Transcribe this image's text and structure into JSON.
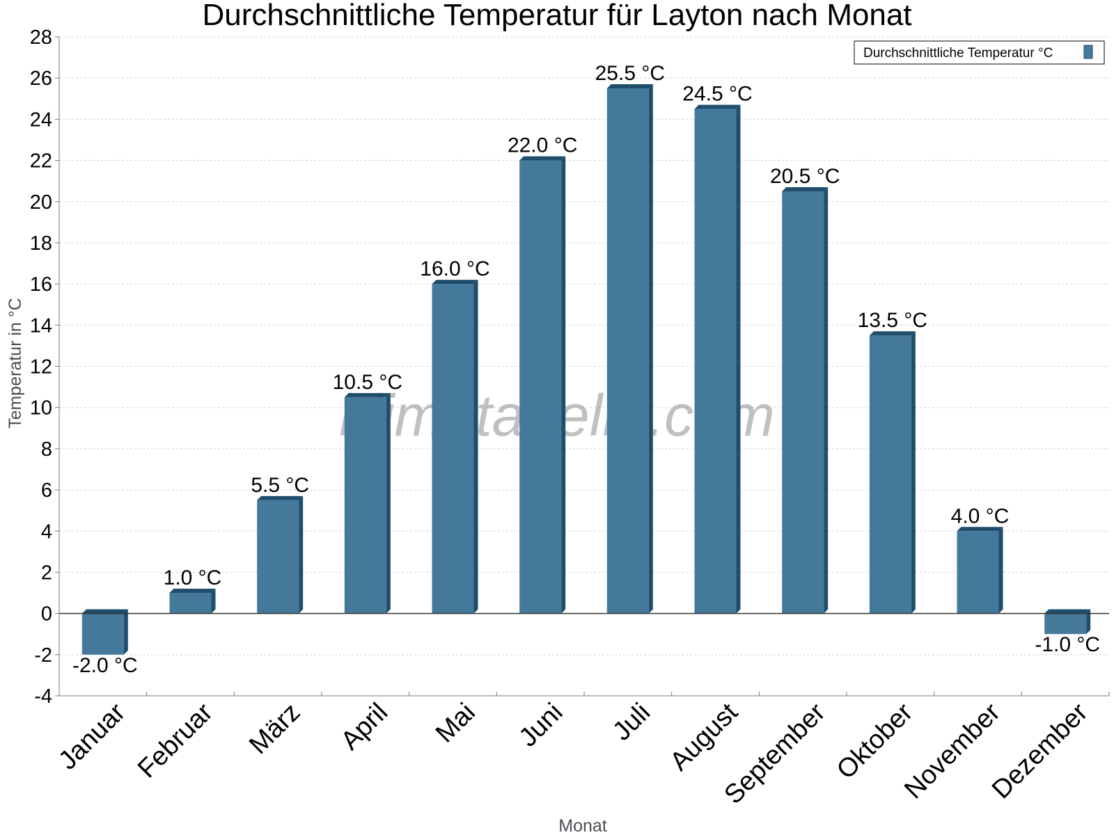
{
  "colors": {
    "bar_front": "#45799c",
    "bar_side": "#1f4e6c",
    "bar_top": "#1f4e6c",
    "grid": "#cfcfcf",
    "axis": "#7a7a7a",
    "zero_line": "#333333"
  },
  "watermark": "klimatabelle.com",
  "chart_data": {
    "type": "bar",
    "title": "Durchschnittliche Temperatur für Layton nach Monat",
    "xlabel": "Monat",
    "ylabel": "Temperatur in °C",
    "categories": [
      "Januar",
      "Februar",
      "März",
      "April",
      "Mai",
      "Juni",
      "Juli",
      "August",
      "September",
      "Oktober",
      "November",
      "Dezember"
    ],
    "series": [
      {
        "name": "Durchschnittliche Temperatur °C",
        "values": [
          -2.0,
          1.0,
          5.5,
          10.5,
          16.0,
          22.0,
          25.5,
          24.5,
          20.5,
          13.5,
          4.0,
          -1.0
        ],
        "labels": [
          "-2.0 °C",
          "1.0 °C",
          "5.5 °C",
          "10.5 °C",
          "16.0 °C",
          "22.0 °C",
          "25.5 °C",
          "24.5 °C",
          "20.5 °C",
          "13.5 °C",
          "4.0 °C",
          "-1.0 °C"
        ]
      }
    ],
    "ylim": [
      -4,
      28
    ],
    "yticks": [
      "-4",
      "-2",
      "0",
      "2",
      "4",
      "6",
      "8",
      "10",
      "12",
      "14",
      "16",
      "18",
      "20",
      "22",
      "24",
      "26",
      "28"
    ],
    "grid": true,
    "legend_position": "top-right"
  }
}
